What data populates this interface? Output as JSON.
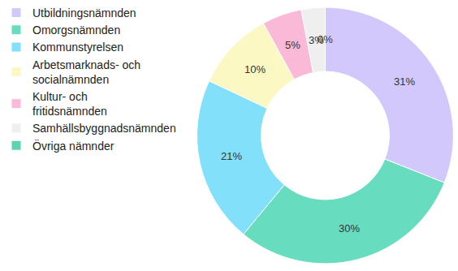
{
  "chart_data": {
    "type": "donut",
    "categories": [
      "Utbildningsnämnden",
      "Omorgsnämnden",
      "Kommunstyrelsen",
      "Arbetsmarknads- och socialnämnden",
      "Kultur- och fritidsnämnden",
      "Samhällsbyggnadsnämnden",
      "Övriga nämnder"
    ],
    "values": [
      31,
      30,
      21,
      10,
      5,
      3,
      0
    ],
    "value_labels": [
      "31%",
      "30%",
      "21%",
      "10%",
      "5%",
      "3%",
      "0%"
    ],
    "colors": [
      "#d3c8fb",
      "#67dcbf",
      "#82e0fb",
      "#fcf8c3",
      "#fab9d7",
      "#efefef",
      "#5dd3b2"
    ],
    "data_labels": true,
    "legend": "left"
  }
}
